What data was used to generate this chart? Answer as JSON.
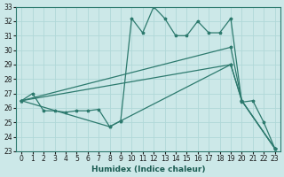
{
  "xlabel": "Humidex (Indice chaleur)",
  "background_color": "#cce8e8",
  "grid_color": "#b0d8d8",
  "line_color": "#2d7a6e",
  "xmin": 0,
  "xmax": 23,
  "ymin": 23,
  "ymax": 33,
  "line1_x": [
    0,
    1,
    2,
    3,
    4,
    5,
    6,
    7,
    8,
    9,
    10,
    11,
    12,
    13,
    14,
    15,
    16,
    17,
    18,
    19,
    20,
    21,
    22,
    23
  ],
  "line1_y": [
    26.5,
    27.0,
    25.8,
    25.8,
    25.7,
    25.8,
    25.8,
    25.9,
    24.7,
    25.1,
    32.2,
    31.2,
    33.0,
    32.2,
    31.0,
    31.0,
    32.0,
    31.2,
    31.2,
    32.2,
    26.4,
    26.5,
    25.0,
    23.2
  ],
  "line2_x": [
    0,
    19,
    20,
    23
  ],
  "line2_y": [
    26.5,
    30.2,
    26.5,
    23.2
  ],
  "line3_x": [
    0,
    19,
    20,
    23
  ],
  "line3_y": [
    26.5,
    29.0,
    26.5,
    23.2
  ],
  "line4_x": [
    0,
    8,
    9,
    19,
    20,
    23
  ],
  "line4_y": [
    26.5,
    24.7,
    25.1,
    29.0,
    26.5,
    23.2
  ]
}
